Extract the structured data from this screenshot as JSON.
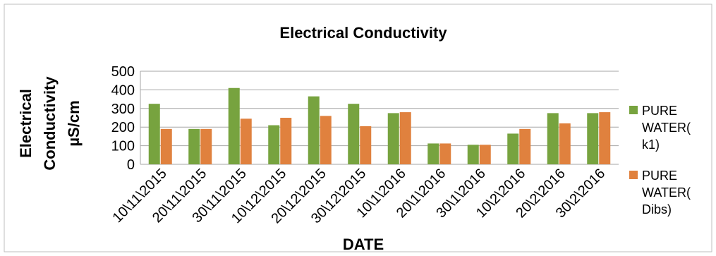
{
  "chart_data": {
    "type": "bar",
    "title": "Electrical Conductivity",
    "xlabel": "DATE",
    "ylabel_lines": [
      "Electrical",
      "Conductivity",
      "µS/cm"
    ],
    "ylim": [
      0,
      500
    ],
    "yticks": [
      0,
      100,
      200,
      300,
      400,
      500
    ],
    "grid": true,
    "legend_position": "right",
    "categories": [
      "10\\11\\2015",
      "20\\11\\2015",
      "30\\11\\2015",
      "10\\12\\2015",
      "20\\12\\2015",
      "30\\12\\2015",
      "10\\1\\2016",
      "20\\1\\2016",
      "30\\1\\2016",
      "10\\2\\2016",
      "20\\2\\2016",
      "30\\2\\2016"
    ],
    "series": [
      {
        "name": "PURE WATER(k1)",
        "legend_lines": [
          "PURE",
          "WATER(",
          "k1)"
        ],
        "color": "#77a33f",
        "values": [
          325,
          190,
          410,
          210,
          365,
          325,
          275,
          112,
          105,
          165,
          275,
          275
        ]
      },
      {
        "name": "PURE WATER(Dibs)",
        "legend_lines": [
          "PURE",
          "WATER(",
          "Dibs)"
        ],
        "color": "#e0813e",
        "values": [
          190,
          190,
          245,
          250,
          260,
          205,
          280,
          112,
          105,
          190,
          220,
          280
        ]
      }
    ]
  }
}
